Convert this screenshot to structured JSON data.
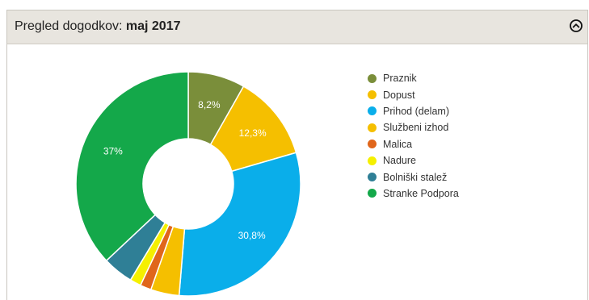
{
  "header": {
    "title_prefix": "Pregled dogodkov:",
    "period": "maj 2017",
    "collapse_icon": "chevron-up-circle-icon"
  },
  "chart_data": {
    "type": "pie",
    "donut": true,
    "legend_position": "right",
    "series": [
      {
        "name": "Praznik",
        "value": 8.2,
        "label": "8,2%",
        "color": "#7a8e3a"
      },
      {
        "name": "Dopust",
        "value": 12.3,
        "label": "12,3%",
        "color": "#f5bf00"
      },
      {
        "name": "Prihod (delam)",
        "value": 30.8,
        "label": "30,8%",
        "color": "#0aaeea"
      },
      {
        "name": "Službeni izhod",
        "value": 4.1,
        "label": "",
        "color": "#f5bf00"
      },
      {
        "name": "Malica",
        "value": 1.6,
        "label": "",
        "color": "#e0661b"
      },
      {
        "name": "Nadure",
        "value": 1.6,
        "label": "",
        "color": "#f5f000"
      },
      {
        "name": "Bolniški stalež",
        "value": 4.4,
        "label": "",
        "color": "#2f7f96"
      },
      {
        "name": "Stranke Podpora",
        "value": 37,
        "label": "37%",
        "color": "#14a84a"
      }
    ]
  }
}
